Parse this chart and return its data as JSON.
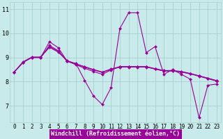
{
  "background_color": "#c8eaea",
  "line_color": "#990099",
  "grid_color": "#a8d0d0",
  "xlabel": "Windchill (Refroidissement éolien,°C)",
  "x": [
    0,
    1,
    2,
    3,
    4,
    5,
    6,
    7,
    8,
    9,
    10,
    11,
    12,
    13,
    14,
    15,
    16,
    17,
    18,
    19,
    20,
    21,
    22,
    23
  ],
  "series1": [
    8.4,
    8.8,
    9.0,
    9.0,
    9.65,
    9.4,
    8.85,
    8.75,
    8.05,
    7.4,
    7.05,
    7.75,
    10.2,
    10.85,
    10.85,
    9.2,
    9.45,
    8.3,
    8.5,
    8.3,
    8.1,
    6.5,
    7.85,
    7.9
  ],
  "series2": [
    8.4,
    8.8,
    9.0,
    9.0,
    9.5,
    9.28,
    8.85,
    8.7,
    8.55,
    8.42,
    8.3,
    8.48,
    8.62,
    8.62,
    8.62,
    8.62,
    8.52,
    8.44,
    8.44,
    8.4,
    8.32,
    8.24,
    8.14,
    8.04
  ],
  "series3": [
    8.4,
    8.8,
    9.0,
    9.0,
    9.45,
    9.25,
    8.85,
    8.72,
    8.6,
    8.48,
    8.38,
    8.5,
    8.6,
    8.6,
    8.6,
    8.6,
    8.52,
    8.44,
    8.44,
    8.4,
    8.32,
    8.22,
    8.12,
    8.02
  ],
  "series4": [
    8.4,
    8.82,
    9.02,
    9.02,
    9.42,
    9.22,
    8.87,
    8.74,
    8.62,
    8.5,
    8.4,
    8.52,
    8.62,
    8.62,
    8.62,
    8.62,
    8.54,
    8.46,
    8.46,
    8.42,
    8.34,
    8.24,
    8.14,
    8.04
  ],
  "yticks": [
    7,
    8,
    9,
    10,
    11
  ],
  "ylim": [
    6.3,
    11.3
  ],
  "xlim": [
    -0.5,
    23.5
  ],
  "tick_fontsize": 5.5,
  "ytick_fontsize": 6.0,
  "xlabel_fontsize": 6.0,
  "linewidth": 0.8,
  "markersize": 2.0
}
